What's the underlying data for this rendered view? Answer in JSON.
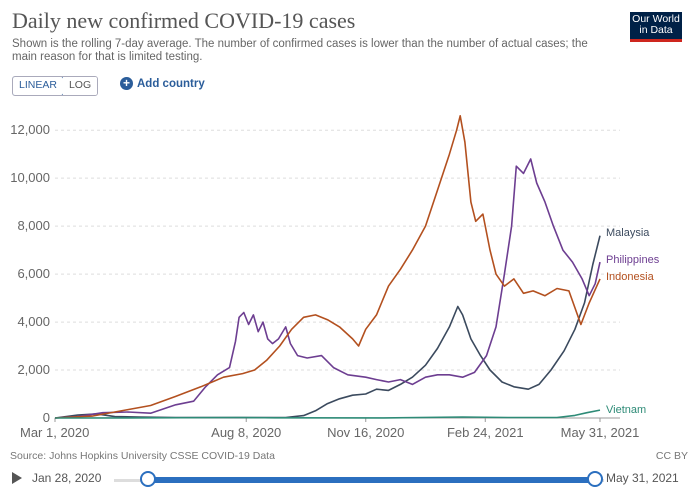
{
  "header": {
    "title": "Daily new confirmed COVID-19 cases",
    "subtitle": "Shown is the rolling 7-day average. The number of confirmed cases is lower than the number of actual cases; the main reason for that is limited testing.",
    "logo": "Our World in Data"
  },
  "controls": {
    "linear_label": "LINEAR",
    "log_label": "LOG",
    "add_country_label": "Add country"
  },
  "footer": {
    "source": "Source: Johns Hopkins University CSSE COVID-19 Data",
    "license": "CC BY"
  },
  "timeline": {
    "start_label": "Jan 28, 2020",
    "end_label": "May 31, 2021"
  },
  "chart_data": {
    "type": "line",
    "title": "Daily new confirmed COVID-19 cases",
    "x_start": "2020-03-01",
    "x_end": "2021-05-31",
    "x_tick_labels": [
      {
        "label": "Mar 1, 2020",
        "date": "2020-03-01"
      },
      {
        "label": "Aug 8, 2020",
        "date": "2020-08-08"
      },
      {
        "label": "Nov 16, 2020",
        "date": "2020-11-16"
      },
      {
        "label": "Feb 24, 2021",
        "date": "2021-02-24"
      },
      {
        "label": "May 31, 2021",
        "date": "2021-05-31"
      }
    ],
    "y_ticks": [
      0,
      2000,
      4000,
      6000,
      8000,
      10000,
      12000
    ],
    "y_tick_labels": [
      "0",
      "2,000",
      "4,000",
      "6,000",
      "8,000",
      "10,000",
      "12,000"
    ],
    "ylim": [
      0,
      12800
    ],
    "grid": "horizontal dashed",
    "series": [
      {
        "name": "Malaysia",
        "color": "#3b4a5e",
        "points": [
          [
            "2020-03-01",
            0
          ],
          [
            "2020-03-20",
            120
          ],
          [
            "2020-04-05",
            170
          ],
          [
            "2020-04-20",
            60
          ],
          [
            "2020-05-10",
            40
          ],
          [
            "2020-06-10",
            20
          ],
          [
            "2020-08-10",
            15
          ],
          [
            "2020-09-10",
            20
          ],
          [
            "2020-09-25",
            100
          ],
          [
            "2020-10-05",
            300
          ],
          [
            "2020-10-15",
            600
          ],
          [
            "2020-10-25",
            800
          ],
          [
            "2020-11-05",
            950
          ],
          [
            "2020-11-16",
            1000
          ],
          [
            "2020-11-25",
            1200
          ],
          [
            "2020-12-05",
            1150
          ],
          [
            "2020-12-15",
            1400
          ],
          [
            "2020-12-25",
            1700
          ],
          [
            "2021-01-05",
            2200
          ],
          [
            "2021-01-15",
            2900
          ],
          [
            "2021-01-25",
            3800
          ],
          [
            "2021-02-01",
            4650
          ],
          [
            "2021-02-05",
            4300
          ],
          [
            "2021-02-12",
            3300
          ],
          [
            "2021-02-20",
            2600
          ],
          [
            "2021-02-28",
            2000
          ],
          [
            "2021-03-10",
            1500
          ],
          [
            "2021-03-20",
            1300
          ],
          [
            "2021-04-01",
            1200
          ],
          [
            "2021-04-10",
            1400
          ],
          [
            "2021-04-20",
            2000
          ],
          [
            "2021-05-01",
            2800
          ],
          [
            "2021-05-10",
            3700
          ],
          [
            "2021-05-18",
            4800
          ],
          [
            "2021-05-25",
            6400
          ],
          [
            "2021-05-31",
            7600
          ]
        ]
      },
      {
        "name": "Philippines",
        "color": "#6d3e91",
        "points": [
          [
            "2020-03-01",
            0
          ],
          [
            "2020-03-20",
            60
          ],
          [
            "2020-04-10",
            220
          ],
          [
            "2020-05-01",
            250
          ],
          [
            "2020-05-20",
            200
          ],
          [
            "2020-06-10",
            550
          ],
          [
            "2020-06-25",
            700
          ],
          [
            "2020-07-05",
            1300
          ],
          [
            "2020-07-15",
            1800
          ],
          [
            "2020-07-25",
            2100
          ],
          [
            "2020-07-30",
            3200
          ],
          [
            "2020-08-02",
            4200
          ],
          [
            "2020-08-06",
            4400
          ],
          [
            "2020-08-10",
            3900
          ],
          [
            "2020-08-14",
            4300
          ],
          [
            "2020-08-18",
            3600
          ],
          [
            "2020-08-22",
            4000
          ],
          [
            "2020-08-26",
            3300
          ],
          [
            "2020-08-30",
            3100
          ],
          [
            "2020-09-04",
            3300
          ],
          [
            "2020-09-10",
            3800
          ],
          [
            "2020-09-14",
            3100
          ],
          [
            "2020-09-20",
            2600
          ],
          [
            "2020-09-28",
            2500
          ],
          [
            "2020-10-10",
            2600
          ],
          [
            "2020-10-20",
            2100
          ],
          [
            "2020-11-01",
            1800
          ],
          [
            "2020-11-16",
            1700
          ],
          [
            "2020-11-25",
            1600
          ],
          [
            "2020-12-05",
            1500
          ],
          [
            "2020-12-15",
            1600
          ],
          [
            "2020-12-25",
            1400
          ],
          [
            "2021-01-05",
            1700
          ],
          [
            "2021-01-15",
            1800
          ],
          [
            "2021-01-25",
            1800
          ],
          [
            "2021-02-05",
            1700
          ],
          [
            "2021-02-15",
            1900
          ],
          [
            "2021-02-25",
            2600
          ],
          [
            "2021-03-05",
            3800
          ],
          [
            "2021-03-12",
            6000
          ],
          [
            "2021-03-18",
            8000
          ],
          [
            "2021-03-22",
            10500
          ],
          [
            "2021-03-28",
            10200
          ],
          [
            "2021-04-03",
            10800
          ],
          [
            "2021-04-08",
            9800
          ],
          [
            "2021-04-15",
            9000
          ],
          [
            "2021-04-22",
            8000
          ],
          [
            "2021-04-30",
            7000
          ],
          [
            "2021-05-08",
            6500
          ],
          [
            "2021-05-16",
            5800
          ],
          [
            "2021-05-22",
            5100
          ],
          [
            "2021-05-27",
            5600
          ],
          [
            "2021-05-31",
            6500
          ]
        ]
      },
      {
        "name": "Indonesia",
        "color": "#b3501f",
        "points": [
          [
            "2020-03-01",
            0
          ],
          [
            "2020-04-01",
            80
          ],
          [
            "2020-05-01",
            350
          ],
          [
            "2020-05-20",
            520
          ],
          [
            "2020-06-10",
            900
          ],
          [
            "2020-07-01",
            1300
          ],
          [
            "2020-07-20",
            1700
          ],
          [
            "2020-08-05",
            1850
          ],
          [
            "2020-08-15",
            2000
          ],
          [
            "2020-08-25",
            2400
          ],
          [
            "2020-09-05",
            3000
          ],
          [
            "2020-09-15",
            3700
          ],
          [
            "2020-09-25",
            4200
          ],
          [
            "2020-10-05",
            4300
          ],
          [
            "2020-10-15",
            4100
          ],
          [
            "2020-10-25",
            3800
          ],
          [
            "2020-11-05",
            3300
          ],
          [
            "2020-11-10",
            3000
          ],
          [
            "2020-11-16",
            3700
          ],
          [
            "2020-11-25",
            4300
          ],
          [
            "2020-12-05",
            5500
          ],
          [
            "2020-12-15",
            6200
          ],
          [
            "2020-12-25",
            7000
          ],
          [
            "2021-01-05",
            8000
          ],
          [
            "2021-01-15",
            9500
          ],
          [
            "2021-01-25",
            11000
          ],
          [
            "2021-01-31",
            12000
          ],
          [
            "2021-02-03",
            12600
          ],
          [
            "2021-02-07",
            11500
          ],
          [
            "2021-02-12",
            9000
          ],
          [
            "2021-02-16",
            8200
          ],
          [
            "2021-02-22",
            8500
          ],
          [
            "2021-02-28",
            7000
          ],
          [
            "2021-03-05",
            6000
          ],
          [
            "2021-03-12",
            5500
          ],
          [
            "2021-03-20",
            5800
          ],
          [
            "2021-03-28",
            5200
          ],
          [
            "2021-04-05",
            5300
          ],
          [
            "2021-04-15",
            5100
          ],
          [
            "2021-04-25",
            5400
          ],
          [
            "2021-05-05",
            5300
          ],
          [
            "2021-05-15",
            3900
          ],
          [
            "2021-05-22",
            4800
          ],
          [
            "2021-05-31",
            5800
          ]
        ]
      },
      {
        "name": "Vietnam",
        "color": "#2e8b77",
        "points": [
          [
            "2020-03-01",
            0
          ],
          [
            "2020-05-01",
            5
          ],
          [
            "2020-08-01",
            20
          ],
          [
            "2020-09-01",
            10
          ],
          [
            "2020-12-01",
            5
          ],
          [
            "2021-02-05",
            40
          ],
          [
            "2021-03-15",
            20
          ],
          [
            "2021-04-25",
            20
          ],
          [
            "2021-05-10",
            110
          ],
          [
            "2021-05-20",
            220
          ],
          [
            "2021-05-31",
            330
          ]
        ]
      }
    ]
  }
}
